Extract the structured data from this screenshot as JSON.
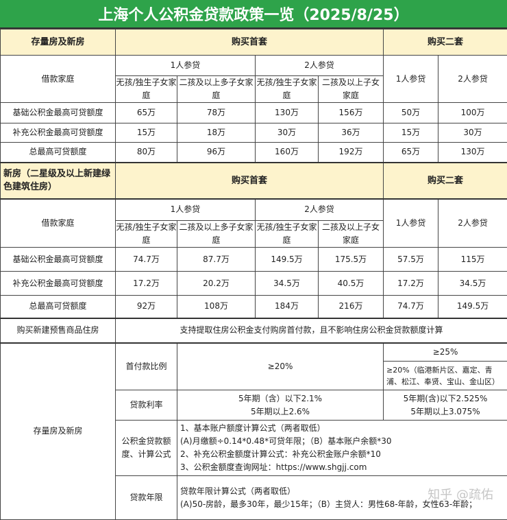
{
  "title": "上海个人公积金贷款政策一览（2025/8/25）",
  "s1": {
    "label": "存量房及新房",
    "first": "购买首套",
    "second": "购买二套",
    "family": "借款家庭",
    "one": "1人参贷",
    "two": "2人参贷",
    "nochild": "无孩/独生子女家庭",
    "multi1": "二孩及以上多子女家庭",
    "multi2": "二孩及以上子女家庭",
    "rows": [
      {
        "label": "基础公积金最高可贷额度",
        "values": [
          "65万",
          "78万",
          "130万",
          "156万",
          "50万",
          "100万"
        ]
      },
      {
        "label": "补充公积金最高可贷额度",
        "values": [
          "15万",
          "18万",
          "30万",
          "36万",
          "15万",
          "30万"
        ]
      },
      {
        "label": "总最高可贷额度",
        "values": [
          "80万",
          "96万",
          "160万",
          "192万",
          "65万",
          "130万"
        ]
      }
    ]
  },
  "s2": {
    "label": "新房（二星级及以上新建绿色建筑住房）",
    "first": "购买首套",
    "second": "购买二套",
    "family": "借款家庭",
    "one": "1人参贷",
    "two": "2人参贷",
    "nochild": "无孩/独生子女家庭",
    "multi1": "二孩及以上多子女家庭",
    "multi2": "二孩及以上子女家庭",
    "rows": [
      {
        "label": "基础公积金最高可贷额度",
        "values": [
          "74.7万",
          "87.7万",
          "149.5万",
          "175.5万",
          "57.5万",
          "115万"
        ]
      },
      {
        "label": "补充公积金最高可贷额度",
        "values": [
          "17.2万",
          "20.2万",
          "34.5万",
          "40.5万",
          "17.2万",
          "34.5万"
        ]
      },
      {
        "label": "总最高可贷额度",
        "values": [
          "92万",
          "108万",
          "184万",
          "216万",
          "74.7万",
          "149.5万"
        ]
      }
    ]
  },
  "presale": {
    "label": "购买新建预售商品住房",
    "text": "支持提取住房公积金支付购房首付款，且不影响住房公积金贷款额度计算"
  },
  "s3": {
    "label": "存量房及新房",
    "down": {
      "label": "首付款比例",
      "first": "≥20%",
      "second": "≥25%",
      "second_alt": "≥20%（临港新片区、嘉定、青浦、松江、奉贤、宝山、金山区）"
    },
    "rate": {
      "label": "贷款利率",
      "first1": "5年期（含）以下2.1%",
      "first2": "5年期以上2.6%",
      "second1": "5年期(含)以下2.525%",
      "second2": "5年期以上3.075%"
    },
    "formula": {
      "label": "公积金贷款额度、计算公式",
      "lines": [
        "1、基本账户额度计算公式（两者取低）",
        "(A)月缴额÷0.14*0.48*可贷年限；（B）基本账户余额*30",
        "2、补充公积金额度计算公式：补充公积金账户余额*10",
        "3、公积金额度查询网址：https://www.shgjj.com"
      ]
    },
    "years": {
      "label": "贷款年限",
      "lines": [
        "贷款年限计算公式（两者取低）",
        "(A)50-房龄，最多30年，最少15年；（B）主贷人：男性68-年龄，女性63-年龄；"
      ]
    }
  },
  "watermark": "知乎 @疏佑",
  "colors": {
    "title_bg": "#2ea34a",
    "header_bg": "#fdf3cc"
  }
}
